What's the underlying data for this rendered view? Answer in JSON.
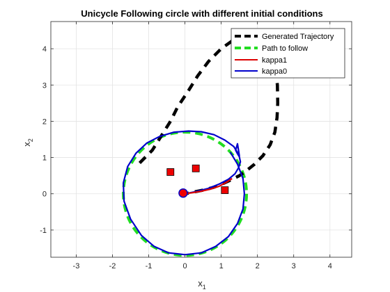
{
  "chart_data": {
    "type": "line",
    "title": "Unicycle Following circle with different initial conditions",
    "xlabel_main": "x",
    "xlabel_sub": "1",
    "ylabel_main": "x",
    "ylabel_sub": "2",
    "xlim": [
      -3.7,
      4.6
    ],
    "ylim": [
      -1.75,
      4.75
    ],
    "xticks": [
      -3,
      -2,
      -1,
      0,
      1,
      2,
      3,
      4
    ],
    "yticks": [
      -1,
      0,
      1,
      2,
      3,
      4
    ],
    "grid": true,
    "legend_position": "top-right",
    "series": [
      {
        "name": "Generated Trajectory",
        "color": "#000000",
        "style": "dashed-thick",
        "x": [
          -1.25,
          -0.9,
          -0.65,
          -0.4,
          -0.2,
          0.1,
          0.35,
          0.65,
          1.0,
          1.35,
          1.7,
          2.05,
          2.3,
          2.45,
          2.5,
          2.55,
          2.56,
          2.54,
          2.48,
          2.35,
          2.15,
          1.9,
          1.65,
          1.5,
          1.4,
          1.3,
          1.2,
          1.05,
          0.8,
          0.5,
          0.2,
          0.0
        ],
        "y": [
          0.85,
          1.2,
          1.6,
          2.0,
          2.4,
          2.85,
          3.25,
          3.65,
          4.0,
          4.25,
          4.35,
          4.3,
          4.1,
          3.8,
          3.4,
          3.0,
          2.5,
          2.1,
          1.7,
          1.35,
          1.05,
          0.8,
          0.6,
          0.5,
          0.45,
          0.4,
          0.35,
          0.28,
          0.18,
          0.1,
          0.04,
          0.0
        ]
      },
      {
        "name": "Path to follow",
        "color": "#22dd22",
        "style": "dashed-thick",
        "circle": {
          "cx": 0,
          "cy": 0,
          "r": 1.7
        }
      },
      {
        "name": "kappa1",
        "color": "#dd0000",
        "style": "solid",
        "x": [
          0.0,
          0.2,
          0.45,
          0.7,
          0.95,
          1.15,
          1.3
        ],
        "y": [
          0.0,
          0.03,
          0.07,
          0.13,
          0.21,
          0.32,
          0.42
        ]
      },
      {
        "name": "kappa0",
        "color": "#0000cc",
        "style": "solid",
        "x": [
          0.0,
          0.3,
          0.65,
          0.95,
          1.2,
          1.38,
          1.48,
          1.53,
          1.5,
          1.44,
          1.4,
          1.45,
          1.5,
          1.35,
          1.1,
          0.8,
          0.45,
          0.1,
          -0.3,
          -0.7,
          -1.05,
          -1.35,
          -1.58,
          -1.7,
          -1.68,
          -1.5,
          -1.2,
          -0.85,
          -0.45,
          0.0,
          0.45,
          0.85,
          1.2,
          1.45,
          1.6,
          1.64,
          1.6,
          1.45,
          1.25
        ],
        "y": [
          0.0,
          0.06,
          0.15,
          0.27,
          0.4,
          0.55,
          0.72,
          0.88,
          1.02,
          1.12,
          1.2,
          1.38,
          1.05,
          1.3,
          1.48,
          1.63,
          1.71,
          1.73,
          1.7,
          1.58,
          1.4,
          1.12,
          0.75,
          0.3,
          -0.2,
          -0.7,
          -1.15,
          -1.45,
          -1.63,
          -1.68,
          -1.63,
          -1.45,
          -1.18,
          -0.82,
          -0.42,
          0.0,
          0.42,
          0.82,
          1.15
        ]
      }
    ],
    "markers": [
      {
        "type": "square",
        "color": "#ee0000",
        "x": -0.4,
        "y": 0.6
      },
      {
        "type": "square",
        "color": "#ee0000",
        "x": 0.3,
        "y": 0.7
      },
      {
        "type": "square",
        "color": "#ee0000",
        "x": 1.1,
        "y": 0.1
      },
      {
        "type": "circle",
        "color": "#ee0000",
        "x": -0.05,
        "y": 0.02
      }
    ]
  }
}
